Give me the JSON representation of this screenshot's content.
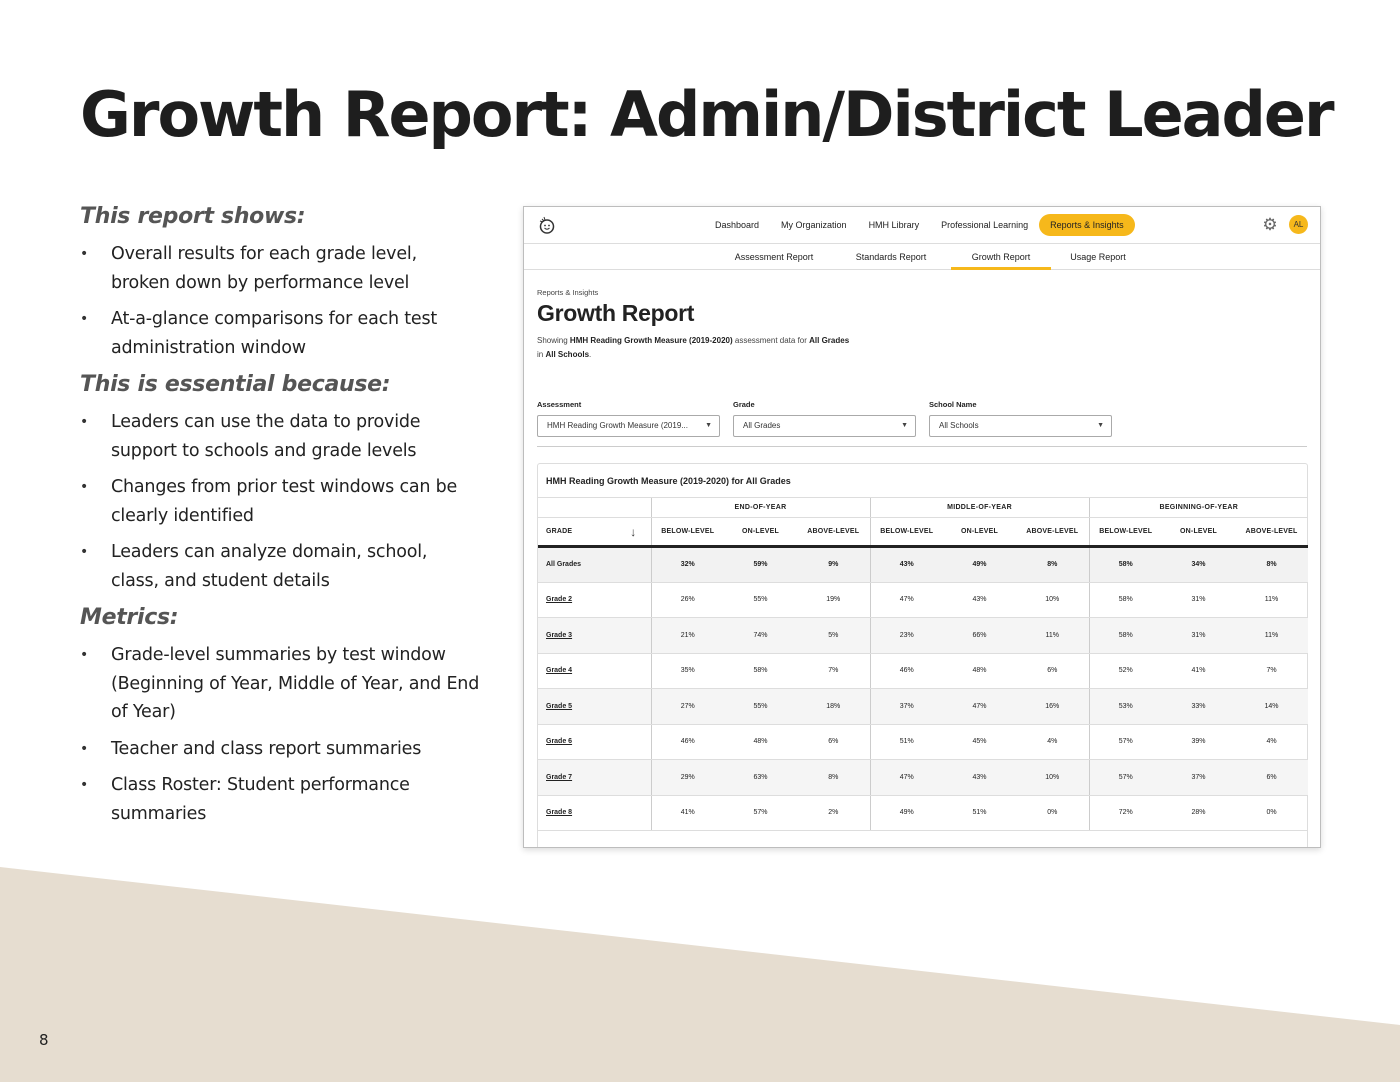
{
  "slide": {
    "title": "Growth Report: Admin/District Leader",
    "page_number": "8",
    "sections": [
      {
        "heading": "This report shows:",
        "bullets": [
          "Overall results for each grade level, broken down by performance level",
          "At-a-glance comparisons for each test administration window"
        ]
      },
      {
        "heading": "This is essential because:",
        "bullets": [
          "Leaders can use the data to provide support to schools and grade levels",
          "Changes from prior test windows can be clearly identified",
          "Leaders can analyze domain, school, class, and student details"
        ]
      },
      {
        "heading": "Metrics:",
        "bullets": [
          "Grade-level summaries by test window (Beginning of Year, Middle of Year, and End of Year)",
          "Teacher and class report summaries",
          "Class Roster: Student performance summaries"
        ]
      }
    ],
    "bullet_glyph": "•"
  },
  "app": {
    "nav": [
      "Dashboard",
      "My Organization",
      "HMH Library",
      "Professional Learning",
      "Reports & Insights"
    ],
    "nav_active_index": 4,
    "accent_color": "#f6b81b",
    "avatar_initials": "AL",
    "subnav": [
      "Assessment Report",
      "Standards Report",
      "Growth Report",
      "Usage Report"
    ],
    "subnav_active_index": 2,
    "breadcrumb": "Reports & Insights",
    "page_title": "Growth Report",
    "description": {
      "prefix": "Showing ",
      "assessment": "HMH Reading Growth Measure (2019-2020)",
      "middle": " assessment data for ",
      "grades": "All Grades",
      "in": " in ",
      "schools": "All Schools",
      "suffix": "."
    },
    "filters": [
      {
        "label": "Assessment",
        "value": "HMH Reading Growth Measure (2019..."
      },
      {
        "label": "Grade",
        "value": "All Grades"
      },
      {
        "label": "School Name",
        "value": "All Schools"
      }
    ],
    "table": {
      "title": "HMH Reading Growth Measure (2019-2020) for All Grades",
      "groups": [
        "END-OF-YEAR",
        "MIDDLE-OF-YEAR",
        "BEGINNING-OF-YEAR"
      ],
      "grade_header": "GRADE",
      "sub_columns": [
        "BELOW-LEVEL",
        "ON-LEVEL",
        "ABOVE-LEVEL"
      ],
      "rows": [
        {
          "grade": "All Grades",
          "values": [
            "32%",
            "59%",
            "9%",
            "43%",
            "49%",
            "8%",
            "58%",
            "34%",
            "8%"
          ]
        },
        {
          "grade": "Grade 2",
          "values": [
            "26%",
            "55%",
            "19%",
            "47%",
            "43%",
            "10%",
            "58%",
            "31%",
            "11%"
          ]
        },
        {
          "grade": "Grade 3",
          "values": [
            "21%",
            "74%",
            "5%",
            "23%",
            "66%",
            "11%",
            "58%",
            "31%",
            "11%"
          ]
        },
        {
          "grade": "Grade 4",
          "values": [
            "35%",
            "58%",
            "7%",
            "46%",
            "48%",
            "6%",
            "52%",
            "41%",
            "7%"
          ]
        },
        {
          "grade": "Grade 5",
          "values": [
            "27%",
            "55%",
            "18%",
            "37%",
            "47%",
            "16%",
            "53%",
            "33%",
            "14%"
          ]
        },
        {
          "grade": "Grade 6",
          "values": [
            "46%",
            "48%",
            "6%",
            "51%",
            "45%",
            "4%",
            "57%",
            "39%",
            "4%"
          ]
        },
        {
          "grade": "Grade 7",
          "values": [
            "29%",
            "63%",
            "8%",
            "47%",
            "43%",
            "10%",
            "57%",
            "37%",
            "6%"
          ]
        },
        {
          "grade": "Grade 8",
          "values": [
            "41%",
            "57%",
            "2%",
            "49%",
            "51%",
            "0%",
            "72%",
            "28%",
            "0%"
          ]
        }
      ]
    }
  }
}
